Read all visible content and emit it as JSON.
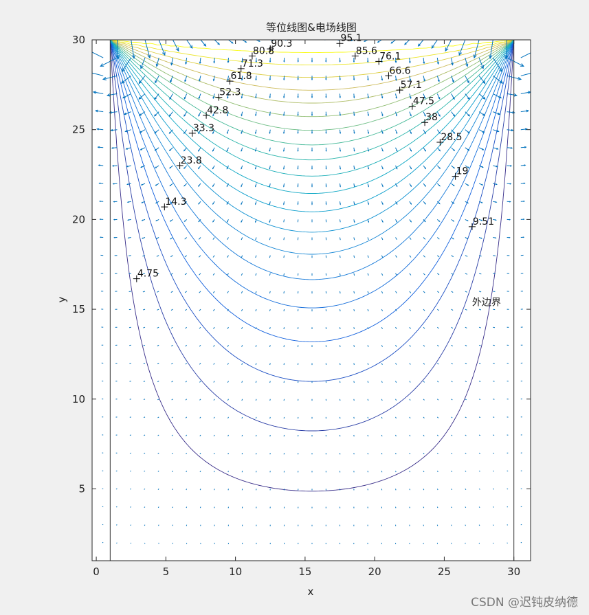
{
  "chart_data": {
    "type": "contour",
    "title": "等位线图&电场线图",
    "xlabel": "x",
    "ylabel": "y",
    "xlim": [
      -0.3,
      31.2
    ],
    "ylim": [
      1,
      30
    ],
    "xticks": [
      0,
      5,
      10,
      15,
      20,
      25,
      30
    ],
    "yticks": [
      5,
      10,
      15,
      20,
      25,
      30
    ],
    "boundary": {
      "x": [
        1,
        30
      ],
      "y": [
        1,
        30
      ]
    },
    "levels": [
      4.75,
      9.51,
      14.3,
      19,
      23.8,
      28.5,
      33.3,
      38,
      42.8,
      47.5,
      52.3,
      57.1,
      61.8,
      66.6,
      71.3,
      76.1,
      80.8,
      85.6,
      90.3,
      95.1
    ],
    "level_labels": [
      {
        "text": "4.75",
        "x": 2.9,
        "y": 16.7
      },
      {
        "text": "9.51",
        "x": 27.0,
        "y": 19.6
      },
      {
        "text": "14.3",
        "x": 4.9,
        "y": 20.7
      },
      {
        "text": "19",
        "x": 25.8,
        "y": 22.4
      },
      {
        "text": "23.8",
        "x": 6.0,
        "y": 23.0
      },
      {
        "text": "28.5",
        "x": 24.7,
        "y": 24.3
      },
      {
        "text": "33.3",
        "x": 6.9,
        "y": 24.8
      },
      {
        "text": "38",
        "x": 23.6,
        "y": 25.4
      },
      {
        "text": "42.8",
        "x": 7.9,
        "y": 25.8
      },
      {
        "text": "47.5",
        "x": 22.7,
        "y": 26.3
      },
      {
        "text": "52.3",
        "x": 8.8,
        "y": 26.8
      },
      {
        "text": "57.1",
        "x": 21.8,
        "y": 27.2
      },
      {
        "text": "61.8",
        "x": 9.6,
        "y": 27.7
      },
      {
        "text": "66.6",
        "x": 21.0,
        "y": 28.0
      },
      {
        "text": "71.3",
        "x": 10.4,
        "y": 28.4
      },
      {
        "text": "76.1",
        "x": 20.3,
        "y": 28.8
      },
      {
        "text": "80.8",
        "x": 11.2,
        "y": 29.1
      },
      {
        "text": "85.6",
        "x": 18.6,
        "y": 29.1
      },
      {
        "text": "90.3",
        "x": 12.5,
        "y": 29.5
      },
      {
        "text": "95.1",
        "x": 17.5,
        "y": 29.8
      }
    ],
    "annotations": [
      {
        "text": "外边界",
        "x": 27.0,
        "y": 15.4
      }
    ],
    "colormap": "parula",
    "quiver_color": "#0072BD"
  },
  "watermark": "CSDN @迟钝皮纳德"
}
